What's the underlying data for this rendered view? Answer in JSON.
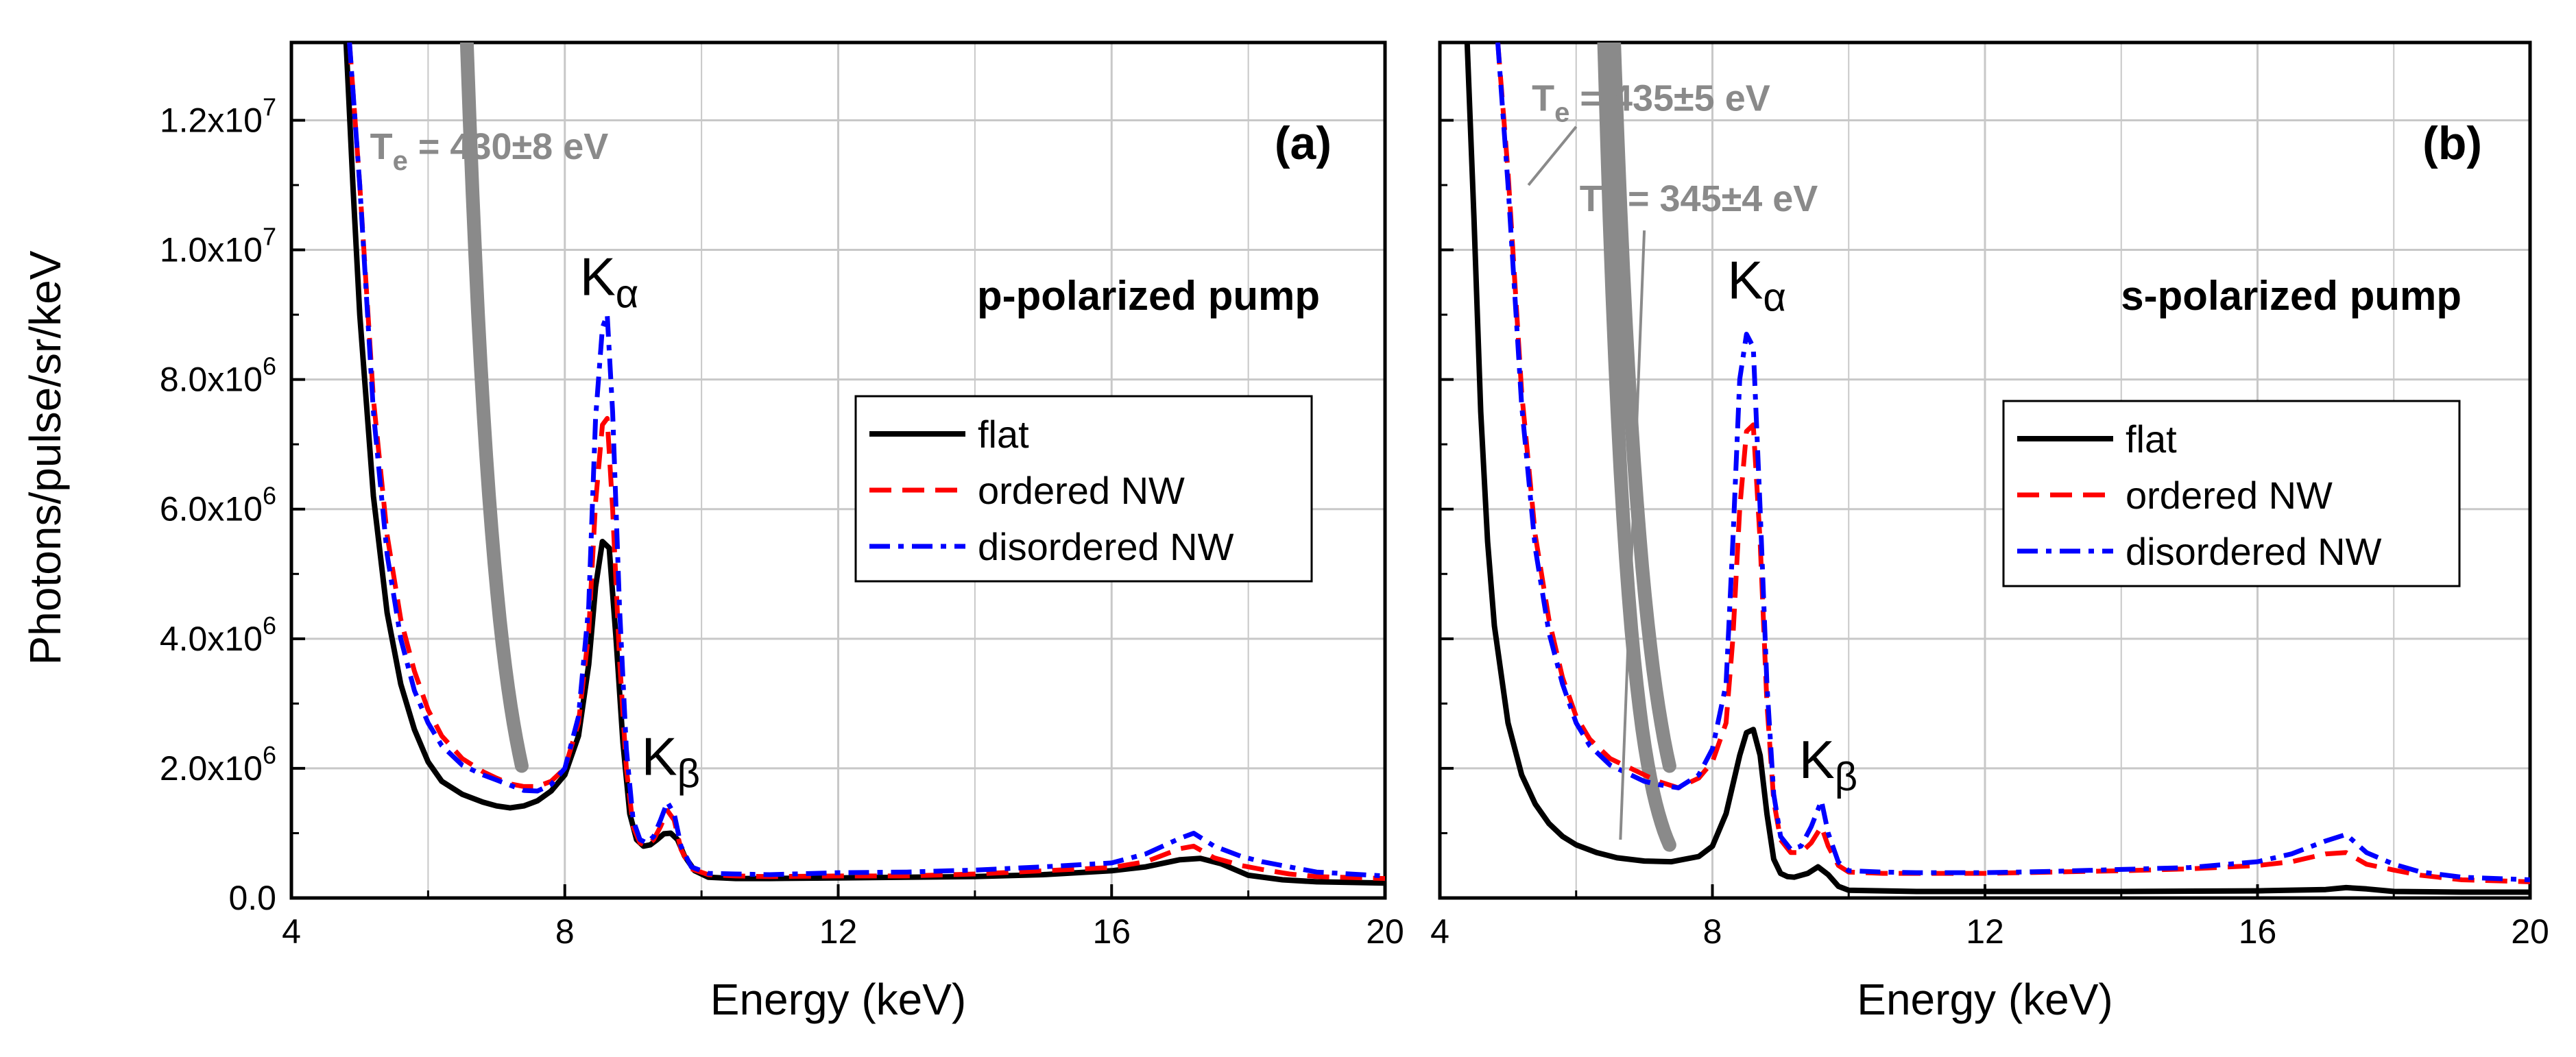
{
  "colors": {
    "flat": "#000000",
    "ordered_nw": "#ff0000",
    "disordered_nw": "#0000ff",
    "fit": "#8a8a8a",
    "grid": "#c8c8c8"
  },
  "chart_data": [
    {
      "type": "line",
      "panel_tag": "a",
      "panel_text": "(a)",
      "polarization_label": "p-polarized pump",
      "xlabel": "Energy (keV)",
      "ylabel": "Photons/pulse/sr/keV",
      "xlim": [
        4,
        20
      ],
      "ylim": [
        0,
        13200000
      ],
      "x_ticks": [
        4,
        8,
        12,
        16,
        20
      ],
      "x_tick_labels": [
        "4",
        "8",
        "12",
        "16",
        "20"
      ],
      "y_ticks": [
        0,
        2000000,
        4000000,
        6000000,
        8000000,
        10000000,
        12000000
      ],
      "y_tick_labels": [
        {
          "mant": "0.0",
          "exp": ""
        },
        {
          "mant": "2.0x10",
          "exp": "6"
        },
        {
          "mant": "4.0x10",
          "exp": "6"
        },
        {
          "mant": "6.0x10",
          "exp": "6"
        },
        {
          "mant": "8.0x10",
          "exp": "6"
        },
        {
          "mant": "1.0x10",
          "exp": "7"
        },
        {
          "mant": "1.2x10",
          "exp": "7"
        }
      ],
      "grid": true,
      "legend": {
        "position": "center-right",
        "entries": [
          "flat",
          "ordered NW",
          "disordered NW"
        ]
      },
      "peak_labels": [
        {
          "base": "K",
          "sub": "α",
          "x": 8.65,
          "y": 9300000
        },
        {
          "base": "K",
          "sub": "β",
          "x": 9.55,
          "y": 1900000
        }
      ],
      "fit_labels": [
        {
          "base": "T",
          "sub": "e",
          "rest": " = 430±8 eV",
          "x": 5.15,
          "y": 11400000
        }
      ],
      "fit_curves": [
        {
          "T_keV": 0.43,
          "x_range": [
            4.85,
            7.4
          ],
          "x_end": 7.4,
          "y_end": 1900000
        }
      ],
      "series": [
        {
          "name": "flat",
          "style": "solid",
          "x": [
            4.8,
            4.9,
            5.0,
            5.2,
            5.4,
            5.6,
            5.8,
            6.0,
            6.2,
            6.5,
            6.8,
            7.0,
            7.2,
            7.4,
            7.6,
            7.8,
            8.0,
            8.2,
            8.35,
            8.45,
            8.55,
            8.65,
            8.75,
            8.85,
            8.95,
            9.05,
            9.15,
            9.25,
            9.35,
            9.45,
            9.55,
            9.65,
            9.75,
            9.9,
            10.1,
            10.5,
            11.0,
            12.0,
            13.0,
            14.0,
            15.0,
            16.0,
            16.5,
            17.0,
            17.3,
            17.6,
            18.0,
            18.5,
            19.0,
            20.0
          ],
          "y": [
            13200000,
            11000000,
            9000000,
            6200000,
            4400000,
            3300000,
            2600000,
            2100000,
            1800000,
            1600000,
            1480000,
            1420000,
            1390000,
            1420000,
            1500000,
            1650000,
            1900000,
            2500000,
            3600000,
            4800000,
            5500000,
            5400000,
            4000000,
            2400000,
            1300000,
            900000,
            800000,
            820000,
            900000,
            990000,
            1000000,
            900000,
            650000,
            420000,
            320000,
            300000,
            300000,
            310000,
            320000,
            330000,
            360000,
            420000,
            480000,
            590000,
            610000,
            530000,
            350000,
            280000,
            250000,
            230000
          ]
        },
        {
          "name": "ordered NW",
          "style": "dashed",
          "x": [
            4.85,
            5.0,
            5.2,
            5.4,
            5.6,
            5.8,
            6.0,
            6.2,
            6.5,
            6.8,
            7.0,
            7.2,
            7.4,
            7.6,
            7.8,
            8.0,
            8.2,
            8.35,
            8.45,
            8.55,
            8.62,
            8.7,
            8.8,
            8.9,
            9.0,
            9.1,
            9.2,
            9.3,
            9.4,
            9.5,
            9.6,
            9.7,
            9.85,
            10.1,
            10.5,
            11.0,
            12.0,
            13.0,
            14.0,
            15.0,
            16.0,
            16.5,
            17.0,
            17.2,
            17.5,
            17.9,
            18.2,
            18.6,
            19.0,
            20.0
          ],
          "y": [
            13200000,
            11000000,
            7700000,
            5600000,
            4300000,
            3500000,
            2900000,
            2500000,
            2150000,
            1950000,
            1850000,
            1760000,
            1720000,
            1720000,
            1800000,
            2000000,
            2700000,
            4100000,
            6100000,
            7300000,
            7400000,
            6000000,
            3700000,
            2000000,
            1100000,
            850000,
            800000,
            900000,
            1100000,
            1350000,
            1200000,
            750000,
            450000,
            360000,
            340000,
            330000,
            340000,
            340000,
            370000,
            420000,
            470000,
            560000,
            760000,
            800000,
            620000,
            500000,
            440000,
            370000,
            330000,
            300000
          ]
        },
        {
          "name": "disordered NW",
          "style": "dashdot",
          "x": [
            4.85,
            5.0,
            5.2,
            5.4,
            5.6,
            5.8,
            6.0,
            6.2,
            6.5,
            6.8,
            7.0,
            7.2,
            7.4,
            7.6,
            7.8,
            8.0,
            8.2,
            8.35,
            8.45,
            8.55,
            8.62,
            8.7,
            8.8,
            8.9,
            9.0,
            9.1,
            9.2,
            9.3,
            9.4,
            9.5,
            9.6,
            9.7,
            9.85,
            10.1,
            10.5,
            11.0,
            12.0,
            13.0,
            14.0,
            15.0,
            16.0,
            16.5,
            17.0,
            17.2,
            17.5,
            17.9,
            18.2,
            18.6,
            19.0,
            20.0
          ],
          "y": [
            13200000,
            11000000,
            7500000,
            5300000,
            4000000,
            3200000,
            2700000,
            2350000,
            2050000,
            1900000,
            1820000,
            1740000,
            1660000,
            1650000,
            1750000,
            2000000,
            2800000,
            4500000,
            7400000,
            8800000,
            9000000,
            7500000,
            4500000,
            2300000,
            1200000,
            900000,
            850000,
            950000,
            1200000,
            1480000,
            1300000,
            800000,
            480000,
            380000,
            370000,
            360000,
            390000,
            400000,
            430000,
            480000,
            540000,
            680000,
            920000,
            1000000,
            800000,
            640000,
            560000,
            480000,
            400000,
            340000
          ]
        }
      ]
    },
    {
      "type": "line",
      "panel_tag": "b",
      "panel_text": "(b)",
      "polarization_label": "s-polarized pump",
      "xlabel": "Energy (keV)",
      "ylabel": "",
      "xlim": [
        4,
        20
      ],
      "ylim": [
        0,
        13200000
      ],
      "x_ticks": [
        4,
        8,
        12,
        16,
        20
      ],
      "x_tick_labels": [
        "4",
        "8",
        "12",
        "16",
        "20"
      ],
      "y_ticks": [
        0,
        2000000,
        4000000,
        6000000,
        8000000,
        10000000,
        12000000
      ],
      "grid": true,
      "legend": {
        "position": "center-right",
        "entries": [
          "flat",
          "ordered NW",
          "disordered NW"
        ]
      },
      "peak_labels": [
        {
          "base": "K",
          "sub": "α",
          "x": 8.65,
          "y": 9250000
        },
        {
          "base": "K",
          "sub": "β",
          "x": 9.7,
          "y": 1850000
        }
      ],
      "fit_labels": [
        {
          "base": "T",
          "sub": "e",
          "rest": " = 435±5 eV",
          "x": 5.35,
          "y": 12150000
        },
        {
          "base": "T",
          "sub": "e",
          "rest": " = 345±4 eV",
          "x": 6.05,
          "y": 10600000
        }
      ],
      "fit_curves": [
        {
          "T_keV": 0.435,
          "x_range": [
            4.85,
            7.4
          ],
          "x_end": 7.4,
          "y_end": 1900000
        },
        {
          "T_keV": 0.345,
          "x_range": [
            4.85,
            7.4
          ],
          "x_end": 7.4,
          "y_end": 750000
        }
      ],
      "leaders": [
        {
          "from": [
            5.3,
            11000000
          ],
          "to": [
            6.0,
            11900000
          ]
        },
        {
          "from": [
            6.65,
            900000
          ],
          "to": [
            7.0,
            10300000
          ]
        }
      ],
      "series": [
        {
          "name": "flat",
          "style": "solid",
          "x": [
            4.4,
            4.5,
            4.6,
            4.7,
            4.8,
            5.0,
            5.2,
            5.4,
            5.6,
            5.8,
            6.0,
            6.3,
            6.6,
            7.0,
            7.4,
            7.8,
            8.0,
            8.2,
            8.4,
            8.5,
            8.6,
            8.7,
            8.8,
            8.9,
            9.0,
            9.1,
            9.2,
            9.4,
            9.55,
            9.7,
            9.85,
            10.0,
            11.0,
            12.0,
            14.0,
            16.0,
            17.0,
            17.3,
            17.6,
            18.0,
            19.0,
            20.0
          ],
          "y": [
            13200000,
            10500000,
            7500000,
            5500000,
            4200000,
            2700000,
            1900000,
            1450000,
            1150000,
            950000,
            820000,
            700000,
            620000,
            570000,
            560000,
            640000,
            800000,
            1300000,
            2200000,
            2550000,
            2600000,
            2200000,
            1300000,
            600000,
            380000,
            330000,
            320000,
            380000,
            480000,
            360000,
            180000,
            120000,
            100000,
            100000,
            100000,
            110000,
            130000,
            160000,
            140000,
            100000,
            90000,
            90000
          ]
        },
        {
          "name": "ordered NW",
          "style": "dashed",
          "x": [
            4.85,
            5.0,
            5.2,
            5.4,
            5.6,
            5.8,
            6.0,
            6.2,
            6.5,
            6.8,
            7.0,
            7.2,
            7.5,
            7.8,
            8.0,
            8.2,
            8.3,
            8.4,
            8.5,
            8.6,
            8.7,
            8.8,
            8.9,
            9.0,
            9.15,
            9.3,
            9.45,
            9.6,
            9.7,
            9.85,
            10.0,
            10.5,
            11.0,
            12.0,
            13.0,
            14.0,
            15.0,
            16.0,
            16.5,
            17.0,
            17.3,
            17.6,
            18.0,
            18.4,
            19.0,
            20.0
          ],
          "y": [
            13200000,
            11200000,
            7800000,
            5600000,
            4300000,
            3400000,
            2800000,
            2450000,
            2150000,
            2000000,
            1900000,
            1800000,
            1700000,
            1850000,
            2100000,
            2700000,
            4000000,
            6000000,
            7200000,
            7300000,
            5500000,
            3000000,
            1500000,
            900000,
            700000,
            700000,
            850000,
            1100000,
            800000,
            500000,
            400000,
            380000,
            380000,
            380000,
            400000,
            420000,
            450000,
            500000,
            560000,
            680000,
            700000,
            520000,
            430000,
            350000,
            280000,
            250000
          ]
        },
        {
          "name": "disordered NW",
          "style": "dashdot",
          "x": [
            4.85,
            5.0,
            5.2,
            5.4,
            5.6,
            5.8,
            6.0,
            6.2,
            6.5,
            6.8,
            7.0,
            7.2,
            7.5,
            7.8,
            8.0,
            8.2,
            8.3,
            8.4,
            8.5,
            8.6,
            8.7,
            8.8,
            8.9,
            9.0,
            9.15,
            9.3,
            9.45,
            9.6,
            9.7,
            9.85,
            10.0,
            10.5,
            11.0,
            12.0,
            13.0,
            14.0,
            15.0,
            16.0,
            16.5,
            17.0,
            17.3,
            17.6,
            18.0,
            18.4,
            19.0,
            20.0
          ],
          "y": [
            13200000,
            11000000,
            7600000,
            5400000,
            4100000,
            3300000,
            2700000,
            2350000,
            2050000,
            1900000,
            1800000,
            1750000,
            1700000,
            1900000,
            2300000,
            3300000,
            5500000,
            8000000,
            8700000,
            8500000,
            6000000,
            3300000,
            1600000,
            950000,
            750000,
            800000,
            1100000,
            1500000,
            1000000,
            550000,
            420000,
            400000,
            390000,
            390000,
            410000,
            440000,
            470000,
            560000,
            680000,
            880000,
            980000,
            700000,
            520000,
            400000,
            320000,
            280000
          ]
        }
      ]
    }
  ]
}
